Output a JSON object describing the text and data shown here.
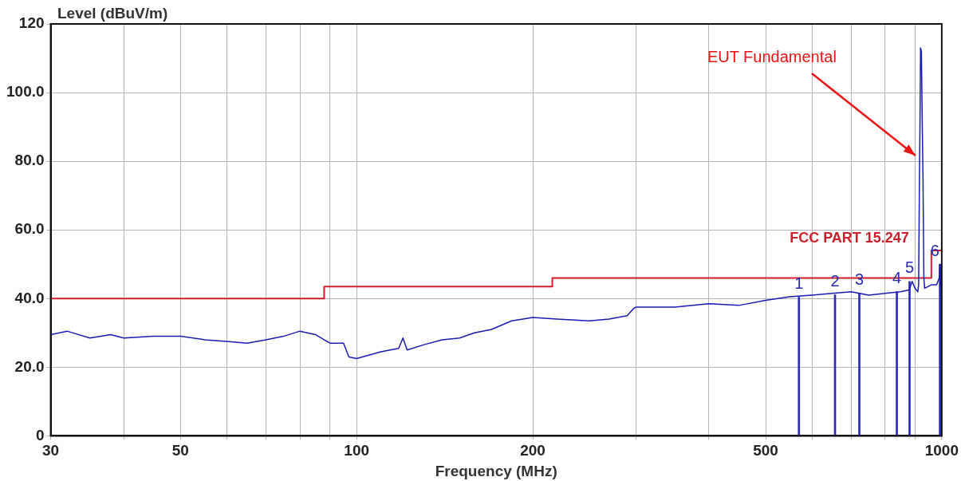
{
  "chart_data": {
    "type": "line",
    "xlabel": "Frequency (MHz)",
    "ylabel": "Level (dBuV/m)",
    "log": "x",
    "grid": true,
    "legend": false,
    "xlim": [
      30,
      1000
    ],
    "xticks": [
      30,
      {
        "value": 40,
        "label": null
      },
      50,
      {
        "value": 60,
        "label": null
      },
      {
        "value": 70,
        "label": null
      },
      {
        "value": 80,
        "label": null
      },
      {
        "value": 90,
        "label": null
      },
      100,
      200,
      {
        "value": 300,
        "label": null
      },
      {
        "value": 400,
        "label": null
      },
      500,
      {
        "value": 600,
        "label": null
      },
      {
        "value": 700,
        "label": null
      },
      {
        "value": 800,
        "label": null
      },
      {
        "value": 900,
        "label": null
      },
      1000
    ],
    "ylim": [
      0,
      120
    ],
    "yticks": [
      0,
      {
        "value": 20,
        "label": "20.0"
      },
      {
        "value": 40,
        "label": "40.0"
      },
      {
        "value": 60,
        "label": "60.0"
      },
      {
        "value": 80,
        "label": "80.0"
      },
      {
        "value": 100,
        "label": "100.0"
      },
      120
    ],
    "annotations": [
      "EUT Fundamental",
      {
        "text": "1",
        "x": 570,
        "y": 40.4
      },
      {
        "text": "2",
        "x": 657,
        "y": 41.1
      },
      {
        "text": "3",
        "x": 723,
        "y": 41.6
      },
      {
        "text": "4",
        "x": 838,
        "y": 42
      },
      {
        "text": "5",
        "x": 881,
        "y": 45
      },
      {
        "text": "6",
        "x": 993,
        "y": 50
      }
    ],
    "series": [
      {
        "color": "#1a1ab4",
        "x": [
          30,
          32,
          35,
          38,
          40,
          45,
          50,
          55,
          60,
          65,
          70,
          75,
          80,
          85,
          90,
          95,
          97,
          100,
          110,
          118,
          120,
          122,
          130,
          140,
          150,
          159,
          170,
          184,
          200,
          220,
          250,
          270,
          290,
          297,
          300,
          350,
          400,
          450,
          500,
          550,
          600,
          650,
          700,
          750,
          800,
          850,
          880,
          890,
          900,
          910,
          913,
          916,
          918,
          920,
          923,
          926,
          929,
          932,
          935,
          960,
          980,
          990,
          993,
          995,
          1000
        ],
        "values": [
          29.5,
          30.5,
          28.5,
          29.5,
          28.5,
          29,
          29,
          28,
          27.5,
          27,
          28,
          29,
          30.5,
          29.5,
          27,
          27,
          23,
          22.5,
          24.5,
          25.5,
          28.5,
          25,
          26.5,
          28,
          28.5,
          30,
          31,
          33.5,
          34.5,
          34,
          33.5,
          34,
          35,
          37,
          37.5,
          37.5,
          38.5,
          38,
          39.5,
          40.5,
          41,
          41.5,
          42,
          41,
          41.5,
          42,
          42.5,
          45,
          43,
          42,
          44,
          75,
          92,
          113,
          112,
          92,
          74,
          46,
          43,
          44,
          44,
          46,
          50,
          44,
          43
        ]
      },
      {
        "type": "step",
        "name": "FCC PART 15.247",
        "color": "#cc1f2a",
        "x": [
          30,
          88,
          216,
          960,
          1000
        ],
        "values": [
          40,
          43.5,
          46,
          54,
          54
        ]
      },
      {
        "type": "bar",
        "color": "#2a2ab8",
        "x": [
          570,
          657,
          723,
          838,
          881,
          993
        ],
        "values": [
          40.4,
          41.1,
          41.6,
          42,
          45,
          50
        ]
      }
    ]
  }
}
